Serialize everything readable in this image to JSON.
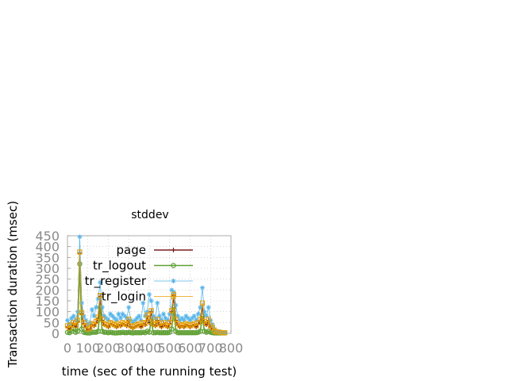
{
  "chart_data": {
    "type": "line",
    "title": "stddev",
    "xlabel": "time (sec of the running test)",
    "ylabel": "Transaction duration (msec)",
    "xlim": [
      0,
      800
    ],
    "ylim": [
      0,
      450
    ],
    "x_ticks": [
      0,
      100,
      200,
      300,
      400,
      500,
      600,
      700,
      800
    ],
    "x_tick_labels": [
      "0",
      "100",
      "200",
      "300",
      "400",
      "500",
      "600",
      "700",
      "800"
    ],
    "y_ticks": [
      0,
      50,
      100,
      150,
      200,
      250,
      300,
      350,
      400,
      450
    ],
    "y_tick_labels": [
      "0",
      "50",
      "100",
      "150",
      "200",
      "250",
      "300",
      "350",
      "400",
      "450"
    ],
    "grid": true,
    "legend_position": "top-right",
    "series": [
      {
        "name": "page",
        "color": "#7a1f1f",
        "marker": "plus",
        "x": [
          0,
          10,
          20,
          30,
          40,
          50,
          60,
          70,
          80,
          90,
          100,
          110,
          120,
          130,
          140,
          150,
          160,
          170,
          180,
          190,
          200,
          210,
          220,
          230,
          240,
          250,
          260,
          270,
          280,
          290,
          300,
          310,
          320,
          330,
          340,
          350,
          360,
          370,
          380,
          390,
          400,
          410,
          420,
          430,
          440,
          450,
          460,
          470,
          480,
          490,
          500,
          510,
          520,
          530,
          540,
          550,
          560,
          570,
          580,
          590,
          600,
          610,
          620,
          630,
          640,
          650,
          660,
          670,
          680,
          690,
          700,
          710,
          720,
          730,
          740,
          750,
          760,
          770
        ],
        "y": [
          30,
          20,
          35,
          45,
          30,
          55,
          370,
          90,
          45,
          30,
          15,
          20,
          40,
          35,
          50,
          70,
          170,
          60,
          40,
          35,
          30,
          45,
          40,
          35,
          30,
          40,
          35,
          45,
          40,
          35,
          60,
          30,
          25,
          30,
          35,
          40,
          30,
          45,
          40,
          80,
          50,
          100,
          40,
          35,
          60,
          40,
          30,
          45,
          35,
          30,
          45,
          100,
          175,
          60,
          40,
          30,
          35,
          30,
          40,
          35,
          30,
          35,
          40,
          30,
          45,
          60,
          130,
          50,
          40,
          60,
          30,
          20,
          10,
          5,
          5,
          3,
          2,
          2
        ]
      },
      {
        "name": "tr_logout",
        "color": "#5fa033",
        "marker": "circle",
        "x": [
          0,
          10,
          20,
          30,
          40,
          50,
          60,
          70,
          80,
          90,
          100,
          110,
          120,
          130,
          140,
          150,
          160,
          170,
          180,
          190,
          200,
          210,
          220,
          230,
          240,
          250,
          260,
          270,
          280,
          290,
          300,
          310,
          320,
          330,
          340,
          350,
          360,
          370,
          380,
          390,
          400,
          410,
          420,
          430,
          440,
          450,
          460,
          470,
          480,
          490,
          500,
          510,
          520,
          530,
          540,
          550,
          560,
          570,
          580,
          590,
          600,
          610,
          620,
          630,
          640,
          650,
          660,
          670,
          680,
          690,
          700,
          710,
          720,
          730,
          740,
          750,
          760,
          770
        ],
        "y": [
          5,
          3,
          10,
          20,
          5,
          10,
          320,
          20,
          5,
          3,
          2,
          2,
          5,
          5,
          5,
          10,
          120,
          10,
          5,
          5,
          3,
          5,
          3,
          2,
          2,
          3,
          3,
          5,
          3,
          3,
          5,
          3,
          2,
          3,
          3,
          3,
          3,
          5,
          3,
          10,
          5,
          60,
          3,
          3,
          5,
          3,
          3,
          3,
          3,
          3,
          5,
          20,
          120,
          10,
          3,
          3,
          3,
          3,
          3,
          3,
          3,
          3,
          3,
          3,
          5,
          10,
          80,
          10,
          5,
          10,
          5,
          3,
          2,
          2,
          2,
          2,
          2,
          2
        ]
      },
      {
        "name": "tr_register",
        "color": "#56b4e9",
        "marker": "asterisk",
        "x": [
          0,
          10,
          20,
          30,
          40,
          50,
          60,
          70,
          80,
          90,
          100,
          110,
          120,
          130,
          140,
          150,
          160,
          170,
          180,
          190,
          200,
          210,
          220,
          230,
          240,
          250,
          260,
          270,
          280,
          290,
          300,
          310,
          320,
          330,
          340,
          350,
          360,
          370,
          380,
          390,
          400,
          410,
          420,
          430,
          440,
          450,
          460,
          470,
          480,
          490,
          500,
          510,
          520,
          530,
          540,
          550,
          560,
          570,
          580,
          590,
          600,
          610,
          620,
          630,
          640,
          650,
          660,
          670,
          680,
          690,
          700,
          710,
          720,
          730,
          740,
          750,
          760,
          770
        ],
        "y": [
          60,
          40,
          70,
          80,
          60,
          100,
          445,
          140,
          80,
          60,
          40,
          50,
          110,
          80,
          120,
          160,
          235,
          120,
          80,
          70,
          60,
          90,
          80,
          70,
          60,
          90,
          70,
          90,
          80,
          70,
          120,
          60,
          50,
          60,
          70,
          80,
          60,
          140,
          80,
          100,
          180,
          150,
          80,
          70,
          140,
          80,
          60,
          90,
          70,
          60,
          90,
          200,
          190,
          130,
          80,
          60,
          70,
          60,
          80,
          70,
          60,
          70,
          80,
          60,
          90,
          120,
          210,
          100,
          80,
          120,
          60,
          40,
          20,
          10,
          8,
          5,
          3,
          3
        ]
      },
      {
        "name": "tr_login",
        "color": "#e69f00",
        "marker": "square",
        "x": [
          0,
          10,
          20,
          30,
          40,
          50,
          60,
          70,
          80,
          90,
          100,
          110,
          120,
          130,
          140,
          150,
          160,
          170,
          180,
          190,
          200,
          210,
          220,
          230,
          240,
          250,
          260,
          270,
          280,
          290,
          300,
          310,
          320,
          330,
          340,
          350,
          360,
          370,
          380,
          390,
          400,
          410,
          420,
          430,
          440,
          450,
          460,
          470,
          480,
          490,
          500,
          510,
          520,
          530,
          540,
          550,
          560,
          570,
          580,
          590,
          600,
          610,
          620,
          630,
          640,
          650,
          660,
          670,
          680,
          690,
          700,
          710,
          720,
          730,
          740,
          750,
          760,
          770
        ],
        "y": [
          35,
          25,
          40,
          50,
          35,
          60,
          375,
          95,
          50,
          35,
          20,
          25,
          45,
          40,
          55,
          75,
          175,
          65,
          45,
          40,
          35,
          50,
          45,
          40,
          35,
          45,
          40,
          50,
          45,
          40,
          65,
          35,
          30,
          35,
          40,
          45,
          35,
          50,
          45,
          85,
          55,
          105,
          45,
          40,
          65,
          45,
          35,
          50,
          40,
          35,
          50,
          105,
          180,
          65,
          45,
          35,
          40,
          35,
          45,
          40,
          35,
          40,
          45,
          35,
          50,
          65,
          140,
          55,
          45,
          65,
          35,
          25,
          12,
          6,
          6,
          4,
          3,
          3
        ]
      }
    ]
  }
}
